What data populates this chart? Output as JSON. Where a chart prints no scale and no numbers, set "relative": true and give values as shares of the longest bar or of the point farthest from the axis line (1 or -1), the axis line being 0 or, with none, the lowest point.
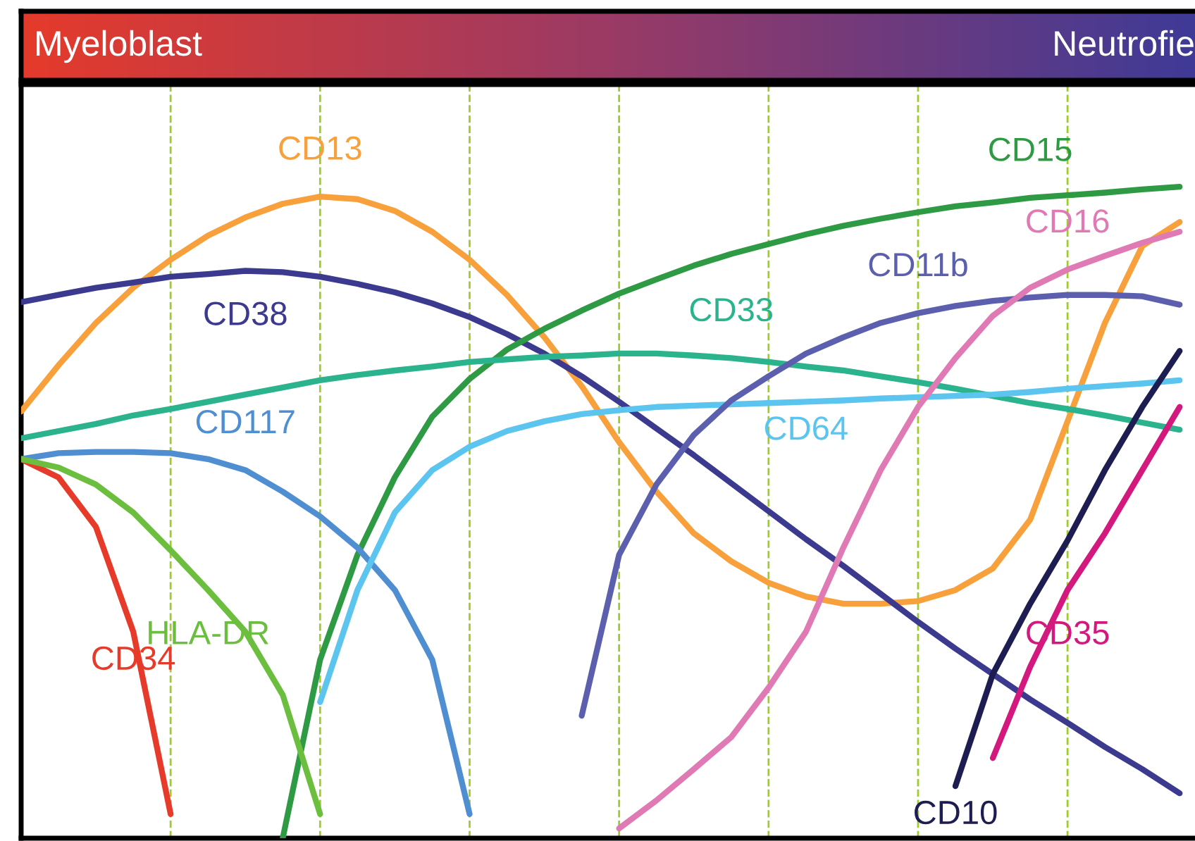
{
  "chart_data": {
    "type": "line",
    "relative": true,
    "annotations": [
      "Myeloblast",
      "Neutrofie"
    ],
    "categories": [
      null,
      null,
      null,
      null,
      null,
      null,
      null,
      null,
      null,
      null,
      null,
      null,
      null,
      null,
      null,
      null,
      null,
      null,
      null,
      null,
      null,
      null,
      null,
      null,
      null,
      null,
      null,
      null,
      null,
      null,
      null,
      null
    ],
    "line_style": "solid",
    "marker": "none",
    "grid": "x",
    "series": [
      {
        "name": "CD13",
        "color": "#f7a03c",
        "values": [
          0.655,
          0.726,
          0.791,
          0.845,
          0.888,
          0.925,
          0.953,
          0.974,
          0.985,
          0.981,
          0.963,
          0.931,
          0.888,
          0.834,
          0.769,
          0.694,
          0.608,
          0.532,
          0.468,
          0.425,
          0.392,
          0.371,
          0.36,
          0.36,
          0.364,
          0.381,
          0.414,
          0.489,
          0.64,
          0.791,
          0.909,
          0.946
        ]
      },
      {
        "name": "CD38",
        "color": "#3b3a8f",
        "values": [
          0.823,
          0.834,
          0.845,
          0.853,
          0.862,
          0.866,
          0.871,
          0.869,
          0.862,
          0.851,
          0.838,
          0.821,
          0.8,
          0.774,
          0.744,
          0.709,
          0.67,
          0.629,
          0.588,
          0.545,
          0.502,
          0.459,
          0.418,
          0.375,
          0.332,
          0.291,
          0.252,
          0.213,
          0.177,
          0.14,
          0.106,
          0.069
        ]
      },
      {
        "name": "CD15",
        "color": "#2e9a44",
        "values": [
          null,
          null,
          null,
          null,
          null,
          null,
          null,
          0.0,
          0.274,
          0.435,
          0.554,
          0.647,
          0.705,
          0.75,
          0.782,
          0.81,
          0.836,
          0.858,
          0.879,
          0.897,
          0.912,
          0.927,
          0.94,
          0.951,
          0.961,
          0.97,
          0.976,
          0.983,
          0.987,
          0.991,
          0.996,
          1.0
        ]
      },
      {
        "name": "CD33",
        "color": "#2bb38e",
        "values": [
          0.614,
          0.625,
          0.636,
          0.649,
          0.659,
          0.67,
          0.681,
          0.692,
          0.703,
          0.711,
          0.718,
          0.724,
          0.731,
          0.735,
          0.739,
          0.741,
          0.744,
          0.744,
          0.741,
          0.737,
          0.731,
          0.724,
          0.718,
          0.709,
          0.7,
          0.69,
          0.679,
          0.668,
          0.659,
          0.649,
          0.638,
          0.627
        ]
      },
      {
        "name": "CD117",
        "color": "#4f8fd1",
        "values": [
          0.582,
          0.591,
          0.593,
          0.593,
          0.591,
          0.582,
          0.565,
          0.532,
          0.494,
          0.446,
          0.381,
          0.274,
          0.037,
          null,
          null,
          null,
          null,
          null,
          null,
          null,
          null,
          null,
          null,
          null,
          null,
          null,
          null,
          null,
          null,
          null,
          null,
          null
        ]
      },
      {
        "name": "CD34",
        "color": "#e63a2a",
        "values": [
          0.582,
          0.554,
          0.478,
          0.317,
          0.037,
          null,
          null,
          null,
          null,
          null,
          null,
          null,
          null,
          null,
          null,
          null,
          null,
          null,
          null,
          null,
          null,
          null,
          null,
          null,
          null,
          null,
          null,
          null,
          null,
          null,
          null,
          null
        ]
      },
      {
        "name": "HLA-DR",
        "color": "#6cbf3e",
        "values": [
          0.582,
          0.569,
          0.543,
          0.5,
          0.442,
          0.381,
          0.317,
          0.22,
          0.037,
          null,
          null,
          null,
          null,
          null,
          null,
          null,
          null,
          null,
          null,
          null,
          null,
          null,
          null,
          null,
          null,
          null,
          null,
          null,
          null,
          null,
          null,
          null
        ]
      },
      {
        "name": "CD64",
        "color": "#5bc4ef",
        "values": [
          null,
          null,
          null,
          null,
          null,
          null,
          null,
          null,
          0.209,
          0.381,
          0.5,
          0.565,
          0.601,
          0.625,
          0.64,
          0.651,
          0.657,
          0.662,
          0.664,
          0.666,
          0.668,
          0.67,
          0.672,
          0.675,
          0.677,
          0.679,
          0.681,
          0.685,
          0.69,
          0.694,
          0.698,
          0.703
        ]
      },
      {
        "name": "CD11b",
        "color": "#5b5fae",
        "values": [
          null,
          null,
          null,
          null,
          null,
          null,
          null,
          null,
          null,
          null,
          null,
          null,
          null,
          null,
          null,
          0.188,
          0.435,
          0.543,
          0.619,
          0.672,
          0.709,
          0.744,
          0.769,
          0.791,
          0.806,
          0.817,
          0.825,
          0.83,
          0.834,
          0.834,
          0.832,
          0.819
        ]
      },
      {
        "name": "CD16",
        "color": "#e07ab5",
        "values": [
          null,
          null,
          null,
          null,
          null,
          null,
          null,
          null,
          null,
          null,
          null,
          null,
          null,
          null,
          null,
          null,
          0.015,
          0.058,
          0.106,
          0.155,
          0.231,
          0.317,
          0.446,
          0.565,
          0.662,
          0.737,
          0.802,
          0.845,
          0.873,
          0.894,
          0.914,
          0.931
        ]
      },
      {
        "name": "CD10",
        "color": "#1d1d52",
        "values": [
          null,
          null,
          null,
          null,
          null,
          null,
          null,
          null,
          null,
          null,
          null,
          null,
          null,
          null,
          null,
          null,
          null,
          null,
          null,
          null,
          null,
          null,
          null,
          null,
          null,
          0.08,
          0.252,
          0.36,
          0.457,
          0.565,
          0.662,
          0.748
        ]
      },
      {
        "name": "CD35",
        "color": "#d4197e",
        "values": [
          null,
          null,
          null,
          null,
          null,
          null,
          null,
          null,
          null,
          null,
          null,
          null,
          null,
          null,
          null,
          null,
          null,
          null,
          null,
          null,
          null,
          null,
          null,
          null,
          null,
          null,
          0.123,
          0.263,
          0.381,
          0.468,
          0.565,
          0.662
        ]
      }
    ]
  }
}
